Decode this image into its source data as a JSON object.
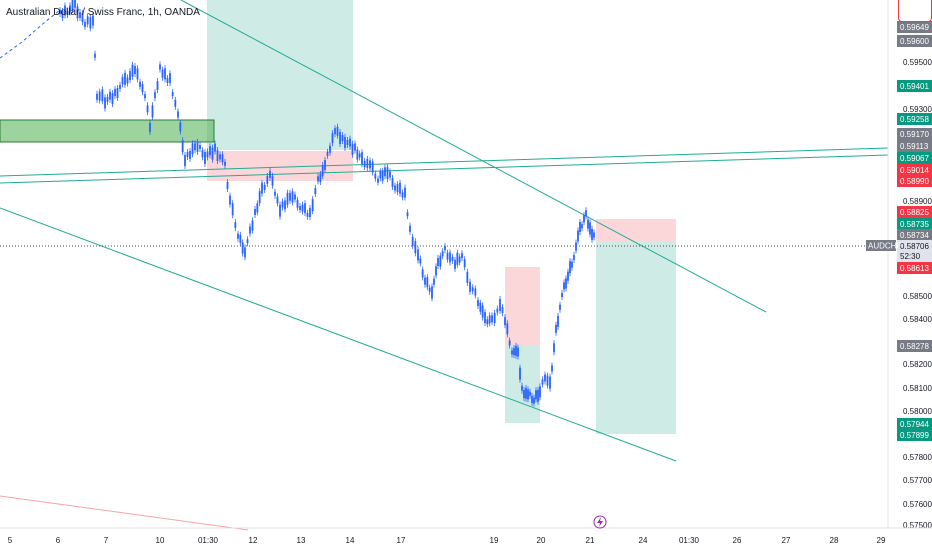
{
  "title": "Australian Dollar / Swiss Franc, 1h, OANDA",
  "colors": {
    "bull": "#2962ff",
    "rr_profit": "rgba(8,153,129,0.20)",
    "rr_loss": "rgba(242,54,69,0.20)",
    "trendline": "#22ab94",
    "zone_green": "#4caf50",
    "price_line": "#131722"
  },
  "price_scale": {
    "ticks": [
      "0.59649",
      "0.59600",
      "0.59500",
      "0.59401",
      "0.59300",
      "0.59258",
      "0.59170",
      "0.59113",
      "0.59067",
      "0.59014",
      "0.58990",
      "0.58900",
      "0.58825",
      "0.58735",
      "0.58734",
      "0.58706",
      "52:30",
      "0.58613",
      "0.58500",
      "0.58400",
      "0.58278",
      "0.58200",
      "0.58100",
      "0.58000",
      "0.57944",
      "0.57899",
      "0.57800",
      "0.57700",
      "0.57600",
      "0.57500"
    ]
  },
  "tags": [
    {
      "text": "0.59649",
      "kind": "gray"
    },
    {
      "text": "0.59600",
      "kind": "gray"
    },
    {
      "text": "0.59401",
      "kind": "green"
    },
    {
      "text": "0.59258",
      "kind": "green"
    },
    {
      "text": "0.59170",
      "kind": "gray"
    },
    {
      "text": "0.59113",
      "kind": "gray"
    },
    {
      "text": "0.59067",
      "kind": "green"
    },
    {
      "text": "0.59014",
      "kind": "red"
    },
    {
      "text": "0.58990",
      "kind": "red"
    },
    {
      "text": "0.58825",
      "kind": "red"
    },
    {
      "text": "0.58735",
      "kind": "green"
    },
    {
      "text": "0.58734",
      "kind": "gray"
    },
    {
      "text": "0.58706",
      "kind": "light"
    },
    {
      "text": "52:30",
      "kind": "light"
    },
    {
      "text": "0.58613",
      "kind": "red"
    },
    {
      "text": "0.58278",
      "kind": "gray"
    },
    {
      "text": "0.57944",
      "kind": "green"
    },
    {
      "text": "0.57899",
      "kind": "green"
    }
  ],
  "symbol_label": "AUDCHF",
  "time_axis": [
    "5",
    "6",
    "7",
    "10",
    "01:30",
    "12",
    "13",
    "14",
    "17",
    "19",
    "20",
    "21",
    "24",
    "01:30",
    "26",
    "27",
    "28",
    "29"
  ],
  "chart_data": {
    "type": "candlestick",
    "symbol": "AUDCHF",
    "interval": "1h",
    "y_range": [
      0.5745,
      0.5975
    ],
    "last_price": 0.58706,
    "key_levels": [
      0.59649,
      0.596,
      0.59401,
      0.59258,
      0.5917,
      0.59113,
      0.59067,
      0.59014,
      0.5899,
      0.58825,
      0.58735,
      0.58734,
      0.58706,
      0.58613,
      0.58278,
      0.57944,
      0.57899
    ]
  }
}
